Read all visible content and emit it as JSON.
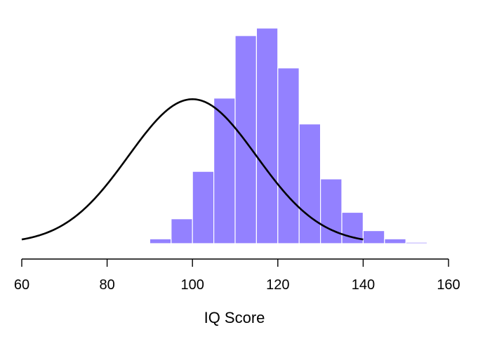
{
  "chart_data": {
    "type": "bar",
    "title": "",
    "xlabel": "IQ Score",
    "ylabel": "",
    "xlim": [
      60,
      160
    ],
    "ylim": [
      0,
      100
    ],
    "xticks": [
      60,
      80,
      100,
      120,
      140,
      160
    ],
    "grid": false,
    "legend": "none",
    "histogram": {
      "bin_width": 5,
      "bin_starts": [
        85,
        90,
        95,
        100,
        105,
        110,
        115,
        120,
        125,
        130,
        135,
        140,
        145,
        150
      ],
      "values": [
        0.3,
        2.2,
        11.5,
        33.5,
        67.5,
        96.5,
        100,
        81.5,
        55.5,
        30.0,
        14.5,
        6.0,
        2.2,
        0.6
      ],
      "color": "#9381ff"
    },
    "series": [
      {
        "type": "line",
        "distribution": "normal",
        "mean": 100,
        "sd": 15,
        "peak": 67,
        "x_range": [
          60,
          140
        ],
        "color": "#000000"
      }
    ]
  }
}
